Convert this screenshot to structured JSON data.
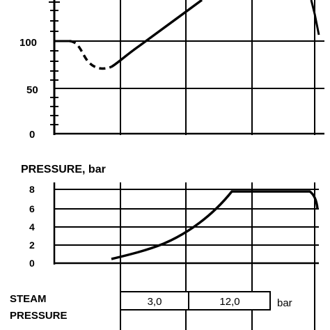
{
  "chart_data": [
    {
      "type": "line",
      "title": "",
      "yticks": [
        "100",
        "50",
        "0"
      ],
      "series": [
        {
          "values_approx": "starts at 100, dips (dashed) to about 70, then rises above 150"
        }
      ]
    },
    {
      "type": "line",
      "title": "PRESSURE, bar",
      "yticks": [
        "8",
        "6",
        "4",
        "2",
        "0"
      ],
      "ylim": [
        0,
        8
      ],
      "series": [
        {
          "points": [
            [
              0,
              0.5
            ],
            [
              1,
              2
            ],
            [
              2,
              4
            ],
            [
              3,
              7.7
            ],
            [
              4,
              7.7
            ],
            [
              4.3,
              6.5
            ]
          ]
        }
      ]
    }
  ],
  "steam": {
    "label_line1": "STEAM",
    "label_line2": "PRESSURE",
    "cells": [
      "3,0",
      "12,0"
    ],
    "unit": "bar"
  }
}
